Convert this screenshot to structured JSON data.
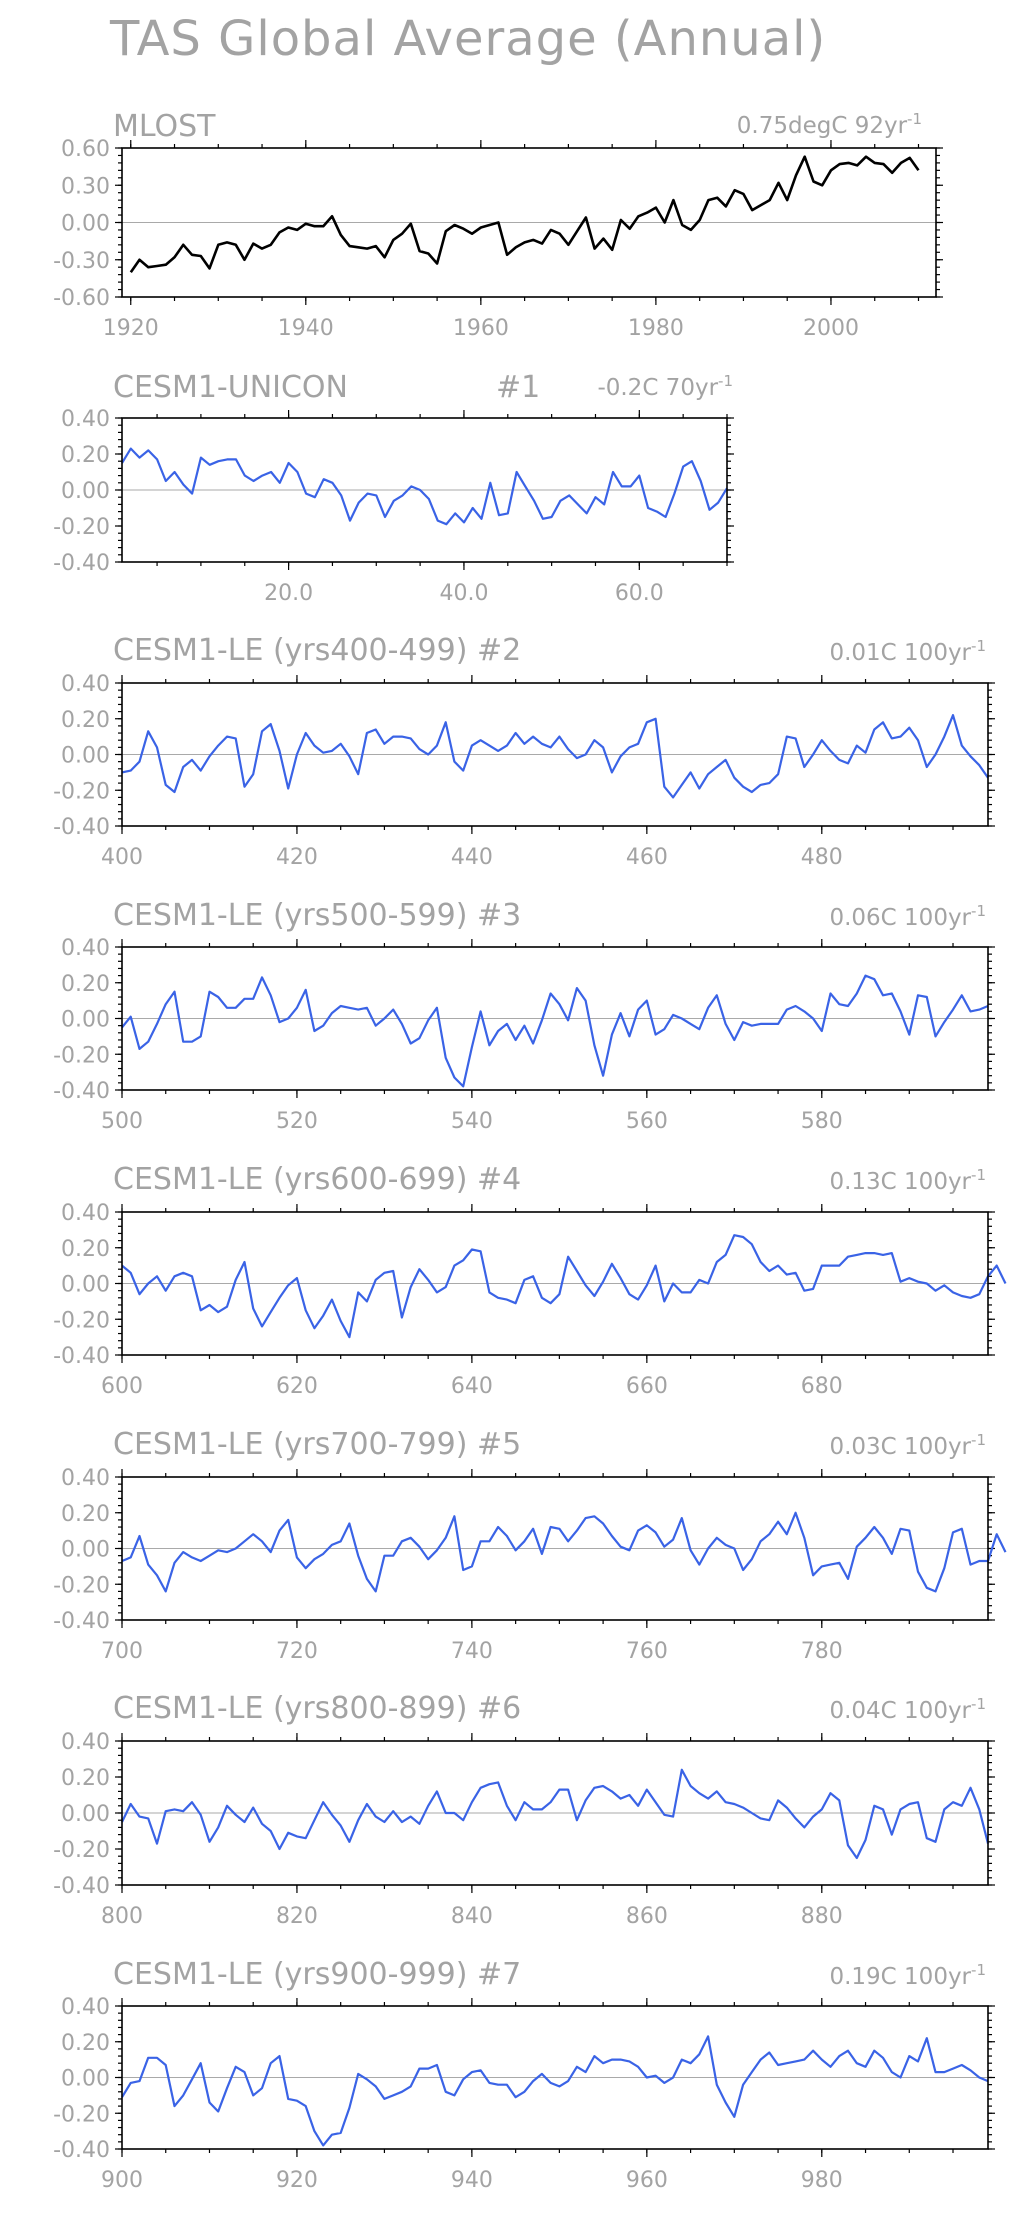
{
  "title": "TAS Global Average (Annual)",
  "colors": {
    "observed_line": "#000000",
    "model_line": "#3a63e6",
    "zero_line": "#a9a9a9",
    "text": "#a3a3a3"
  },
  "chart_data": [
    {
      "type": "line",
      "title": "MLOST",
      "trend_label": "0.75degC 92yr",
      "trend_exponent": "-1",
      "color": "#000000",
      "ylim": [
        -0.6,
        0.6
      ],
      "yticks": [
        "0.60",
        "0.30",
        "0.00",
        "-0.30",
        "-0.60"
      ],
      "xlim": [
        1919,
        2012
      ],
      "xticks": [
        "1920",
        "1940",
        "1960",
        "1980",
        "2000"
      ],
      "x_start": 1920,
      "values": [
        -0.4,
        -0.3,
        -0.36,
        -0.35,
        -0.34,
        -0.28,
        -0.18,
        -0.26,
        -0.27,
        -0.37,
        -0.18,
        -0.16,
        -0.18,
        -0.3,
        -0.17,
        -0.21,
        -0.18,
        -0.08,
        -0.04,
        -0.06,
        -0.01,
        -0.03,
        -0.03,
        0.05,
        -0.1,
        -0.19,
        -0.2,
        -0.21,
        -0.19,
        -0.28,
        -0.14,
        -0.09,
        -0.01,
        -0.23,
        -0.25,
        -0.33,
        -0.07,
        -0.02,
        -0.05,
        -0.09,
        -0.04,
        -0.02,
        0.0,
        -0.26,
        -0.2,
        -0.16,
        -0.14,
        -0.17,
        -0.06,
        -0.09,
        -0.18,
        -0.07,
        0.04,
        -0.21,
        -0.13,
        -0.22,
        0.02,
        -0.05,
        0.05,
        0.08,
        0.12,
        0.0,
        0.18,
        -0.02,
        -0.06,
        0.02,
        0.18,
        0.2,
        0.13,
        0.26,
        0.23,
        0.1,
        0.14,
        0.18,
        0.32,
        0.18,
        0.38,
        0.53,
        0.33,
        0.3,
        0.42,
        0.47,
        0.48,
        0.46,
        0.53,
        0.48,
        0.47,
        0.4,
        0.48,
        0.52,
        0.42
      ]
    },
    {
      "type": "line",
      "title": "CESM1-UNICON",
      "run_label": "#1",
      "trend_label": "-0.2C 70yr",
      "trend_exponent": "-1",
      "color": "#3a63e6",
      "ylim": [
        -0.4,
        0.4
      ],
      "yticks": [
        "0.40",
        "0.20",
        "0.00",
        "-0.20",
        "-0.40"
      ],
      "xlim": [
        1,
        70
      ],
      "xticks": [
        "20.0",
        "40.0",
        "60.0"
      ],
      "x_start": 1,
      "values": [
        0.15,
        0.23,
        0.18,
        0.22,
        0.17,
        0.05,
        0.1,
        0.03,
        -0.02,
        0.18,
        0.14,
        0.16,
        0.17,
        0.17,
        0.08,
        0.05,
        0.08,
        0.1,
        0.04,
        0.15,
        0.1,
        -0.02,
        -0.04,
        0.06,
        0.04,
        -0.03,
        -0.17,
        -0.07,
        -0.02,
        -0.03,
        -0.15,
        -0.06,
        -0.03,
        0.02,
        0.0,
        -0.05,
        -0.17,
        -0.19,
        -0.13,
        -0.18,
        -0.1,
        -0.16,
        0.04,
        -0.14,
        -0.13,
        0.1,
        0.02,
        -0.06,
        -0.16,
        -0.15,
        -0.06,
        -0.03,
        -0.08,
        -0.13,
        -0.04,
        -0.08,
        0.1,
        0.02,
        0.02,
        0.08,
        -0.1,
        -0.12,
        -0.15,
        -0.02,
        0.13,
        0.16,
        0.05,
        -0.11,
        -0.07,
        0.01
      ]
    },
    {
      "type": "line",
      "title": "CESM1-LE (yrs400-499)",
      "run_label": "#2",
      "trend_label": "0.01C 100yr",
      "trend_exponent": "-1",
      "color": "#3a63e6",
      "ylim": [
        -0.4,
        0.4
      ],
      "yticks": [
        "0.40",
        "0.20",
        "0.00",
        "-0.20",
        "-0.40"
      ],
      "xlim": [
        400,
        499
      ],
      "xticks": [
        "400",
        "420",
        "440",
        "460",
        "480"
      ],
      "x_start": 400,
      "values": [
        -0.1,
        -0.09,
        -0.04,
        0.13,
        0.04,
        -0.17,
        -0.21,
        -0.07,
        -0.03,
        -0.09,
        -0.01,
        0.05,
        0.1,
        0.09,
        -0.18,
        -0.11,
        0.13,
        0.17,
        0.02,
        -0.19,
        0.0,
        0.12,
        0.05,
        0.01,
        0.02,
        0.06,
        -0.01,
        -0.11,
        0.12,
        0.14,
        0.06,
        0.1,
        0.1,
        0.09,
        0.03,
        0.0,
        0.05,
        0.18,
        -0.04,
        -0.09,
        0.05,
        0.08,
        0.05,
        0.02,
        0.05,
        0.12,
        0.06,
        0.1,
        0.06,
        0.04,
        0.1,
        0.03,
        -0.02,
        0.0,
        0.08,
        0.04,
        -0.1,
        -0.01,
        0.04,
        0.06,
        0.18,
        0.2,
        -0.18,
        -0.24,
        -0.17,
        -0.1,
        -0.19,
        -0.11,
        -0.07,
        -0.03,
        -0.13,
        -0.18,
        -0.21,
        -0.17,
        -0.16,
        -0.11,
        0.1,
        0.09,
        -0.07,
        0.0,
        0.08,
        0.02,
        -0.03,
        -0.05,
        0.05,
        0.01,
        0.14,
        0.18,
        0.09,
        0.1,
        0.15,
        0.08,
        -0.07,
        0.0,
        0.1,
        0.22,
        0.05,
        -0.01,
        -0.06,
        -0.13
      ]
    },
    {
      "type": "line",
      "title": "CESM1-LE (yrs500-599)",
      "run_label": "#3",
      "trend_label": "0.06C 100yr",
      "trend_exponent": "-1",
      "color": "#3a63e6",
      "ylim": [
        -0.4,
        0.4
      ],
      "yticks": [
        "0.40",
        "0.20",
        "0.00",
        "-0.20",
        "-0.40"
      ],
      "xlim": [
        500,
        599
      ],
      "xticks": [
        "500",
        "520",
        "540",
        "560",
        "580"
      ],
      "x_start": 500,
      "values": [
        -0.05,
        0.01,
        -0.17,
        -0.13,
        -0.03,
        0.08,
        0.15,
        -0.13,
        -0.13,
        -0.1,
        0.15,
        0.12,
        0.06,
        0.06,
        0.11,
        0.11,
        0.23,
        0.13,
        -0.02,
        0.0,
        0.06,
        0.16,
        -0.07,
        -0.04,
        0.03,
        0.07,
        0.06,
        0.05,
        0.06,
        -0.04,
        0.0,
        0.05,
        -0.03,
        -0.14,
        -0.11,
        -0.01,
        0.06,
        -0.22,
        -0.33,
        -0.38,
        -0.16,
        0.04,
        -0.15,
        -0.07,
        -0.03,
        -0.12,
        -0.04,
        -0.14,
        -0.01,
        0.14,
        0.08,
        -0.01,
        0.17,
        0.1,
        -0.15,
        -0.32,
        -0.09,
        0.03,
        -0.1,
        0.05,
        0.1,
        -0.09,
        -0.06,
        0.02,
        0.0,
        -0.03,
        -0.06,
        0.06,
        0.13,
        -0.03,
        -0.12,
        -0.02,
        -0.04,
        -0.03,
        -0.03,
        -0.03,
        0.05,
        0.07,
        0.04,
        0.0,
        -0.07,
        0.14,
        0.08,
        0.07,
        0.14,
        0.24,
        0.22,
        0.13,
        0.14,
        0.04,
        -0.09,
        0.13,
        0.12,
        -0.1,
        -0.02,
        0.05,
        0.13,
        0.04,
        0.05,
        0.07
      ]
    },
    {
      "type": "line",
      "title": "CESM1-LE (yrs600-699)",
      "run_label": "#4",
      "trend_label": "0.13C 100yr",
      "trend_exponent": "-1",
      "color": "#3a63e6",
      "ylim": [
        -0.4,
        0.4
      ],
      "yticks": [
        "0.40",
        "0.20",
        "0.00",
        "-0.20",
        "-0.40"
      ],
      "xlim": [
        600,
        699
      ],
      "xticks": [
        "600",
        "620",
        "640",
        "660",
        "680"
      ],
      "x_start": 600,
      "values": [
        0.1,
        0.06,
        -0.06,
        0.0,
        0.04,
        -0.04,
        0.04,
        0.06,
        0.04,
        -0.15,
        -0.12,
        -0.16,
        -0.13,
        0.02,
        0.12,
        -0.14,
        -0.24,
        -0.16,
        -0.08,
        -0.01,
        0.03,
        -0.15,
        -0.25,
        -0.18,
        -0.09,
        -0.21,
        -0.3,
        -0.05,
        -0.1,
        0.02,
        0.06,
        0.07,
        -0.19,
        -0.02,
        0.08,
        0.02,
        -0.05,
        -0.02,
        0.1,
        0.13,
        0.19,
        0.18,
        -0.05,
        -0.08,
        -0.09,
        -0.11,
        0.02,
        0.04,
        -0.08,
        -0.11,
        -0.06,
        0.15,
        0.07,
        -0.01,
        -0.07,
        0.01,
        0.11,
        0.03,
        -0.06,
        -0.09,
        -0.01,
        0.1,
        -0.1,
        0.0,
        -0.05,
        -0.05,
        0.02,
        0.0,
        0.12,
        0.16,
        0.27,
        0.26,
        0.22,
        0.12,
        0.07,
        0.1,
        0.05,
        0.06,
        -0.04,
        -0.03,
        0.1,
        0.1,
        0.1,
        0.15,
        0.16,
        0.17,
        0.17,
        0.16,
        0.17,
        0.01,
        0.03,
        0.01,
        0.0,
        -0.04,
        -0.01,
        -0.05,
        -0.07,
        -0.08,
        -0.06,
        0.04,
        0.1,
        0.0
      ]
    },
    {
      "type": "line",
      "title": "CESM1-LE (yrs700-799)",
      "run_label": "#5",
      "trend_label": "0.03C 100yr",
      "trend_exponent": "-1",
      "color": "#3a63e6",
      "ylim": [
        -0.4,
        0.4
      ],
      "yticks": [
        "0.40",
        "0.20",
        "0.00",
        "-0.20",
        "-0.40"
      ],
      "xlim": [
        700,
        799
      ],
      "xticks": [
        "700",
        "720",
        "740",
        "760",
        "780"
      ],
      "x_start": 700,
      "values": [
        -0.07,
        -0.05,
        0.07,
        -0.09,
        -0.15,
        -0.24,
        -0.08,
        -0.02,
        -0.05,
        -0.07,
        -0.04,
        -0.01,
        -0.02,
        0.0,
        0.04,
        0.08,
        0.04,
        -0.02,
        0.1,
        0.16,
        -0.05,
        -0.11,
        -0.06,
        -0.03,
        0.02,
        0.04,
        0.14,
        -0.04,
        -0.17,
        -0.24,
        -0.04,
        -0.04,
        0.04,
        0.06,
        0.01,
        -0.06,
        -0.01,
        0.06,
        0.18,
        -0.12,
        -0.1,
        0.04,
        0.04,
        0.12,
        0.07,
        -0.01,
        0.04,
        0.11,
        -0.03,
        0.12,
        0.11,
        0.04,
        0.1,
        0.17,
        0.18,
        0.14,
        0.07,
        0.01,
        -0.01,
        0.1,
        0.13,
        0.09,
        0.01,
        0.05,
        0.17,
        -0.01,
        -0.09,
        0.0,
        0.06,
        0.02,
        0.0,
        -0.12,
        -0.06,
        0.04,
        0.08,
        0.15,
        0.08,
        0.2,
        0.06,
        -0.15,
        -0.1,
        -0.09,
        -0.08,
        -0.17,
        0.01,
        0.06,
        0.12,
        0.06,
        -0.03,
        0.11,
        0.1,
        -0.13,
        -0.22,
        -0.24,
        -0.11,
        0.09,
        0.11,
        -0.09,
        -0.07,
        -0.07,
        0.08,
        -0.02
      ]
    },
    {
      "type": "line",
      "title": "CESM1-LE (yrs800-899)",
      "run_label": "#6",
      "trend_label": "0.04C 100yr",
      "trend_exponent": "-1",
      "color": "#3a63e6",
      "ylim": [
        -0.4,
        0.4
      ],
      "yticks": [
        "0.40",
        "0.20",
        "0.00",
        "-0.20",
        "-0.40"
      ],
      "xlim": [
        800,
        899
      ],
      "xticks": [
        "800",
        "820",
        "840",
        "860",
        "880"
      ],
      "x_start": 800,
      "values": [
        -0.05,
        0.05,
        -0.02,
        -0.03,
        -0.17,
        0.01,
        0.02,
        0.01,
        0.06,
        -0.01,
        -0.16,
        -0.08,
        0.04,
        -0.01,
        -0.05,
        0.03,
        -0.06,
        -0.1,
        -0.2,
        -0.11,
        -0.13,
        -0.14,
        -0.04,
        0.06,
        -0.01,
        -0.07,
        -0.16,
        -0.04,
        0.05,
        -0.02,
        -0.05,
        0.01,
        -0.05,
        -0.02,
        -0.06,
        0.04,
        0.12,
        0.0,
        0.0,
        -0.04,
        0.06,
        0.14,
        0.16,
        0.17,
        0.04,
        -0.04,
        0.06,
        0.02,
        0.02,
        0.06,
        0.13,
        0.13,
        -0.04,
        0.07,
        0.14,
        0.15,
        0.12,
        0.08,
        0.1,
        0.04,
        0.13,
        0.06,
        -0.01,
        -0.02,
        0.24,
        0.15,
        0.11,
        0.08,
        0.12,
        0.06,
        0.05,
        0.03,
        0.0,
        -0.03,
        -0.04,
        0.07,
        0.03,
        -0.03,
        -0.08,
        -0.02,
        0.02,
        0.11,
        0.07,
        -0.18,
        -0.25,
        -0.15,
        0.04,
        0.02,
        -0.12,
        0.02,
        0.05,
        0.06,
        -0.14,
        -0.16,
        0.02,
        0.06,
        0.04,
        0.14,
        0.02,
        -0.17
      ]
    },
    {
      "type": "line",
      "title": "CESM1-LE (yrs900-999)",
      "run_label": "#7",
      "trend_label": "0.19C 100yr",
      "trend_exponent": "-1",
      "color": "#3a63e6",
      "ylim": [
        -0.4,
        0.4
      ],
      "yticks": [
        "0.40",
        "0.20",
        "0.00",
        "-0.20",
        "-0.40"
      ],
      "xlim": [
        900,
        999
      ],
      "xticks": [
        "900",
        "920",
        "940",
        "960",
        "980"
      ],
      "x_start": 900,
      "values": [
        -0.11,
        -0.03,
        -0.02,
        0.11,
        0.11,
        0.07,
        -0.16,
        -0.1,
        -0.01,
        0.08,
        -0.14,
        -0.19,
        -0.06,
        0.06,
        0.03,
        -0.1,
        -0.06,
        0.08,
        0.12,
        -0.12,
        -0.13,
        -0.16,
        -0.3,
        -0.38,
        -0.32,
        -0.31,
        -0.17,
        0.02,
        -0.01,
        -0.05,
        -0.12,
        -0.1,
        -0.08,
        -0.05,
        0.05,
        0.05,
        0.07,
        -0.08,
        -0.1,
        -0.01,
        0.03,
        0.04,
        -0.03,
        -0.04,
        -0.04,
        -0.11,
        -0.08,
        -0.02,
        0.02,
        -0.03,
        -0.05,
        -0.02,
        0.06,
        0.03,
        0.12,
        0.08,
        0.1,
        0.1,
        0.09,
        0.06,
        0.0,
        0.01,
        -0.03,
        0.0,
        0.1,
        0.08,
        0.13,
        0.23,
        -0.04,
        -0.14,
        -0.22,
        -0.04,
        0.03,
        0.1,
        0.14,
        0.07,
        0.08,
        0.09,
        0.1,
        0.15,
        0.1,
        0.06,
        0.12,
        0.15,
        0.08,
        0.06,
        0.15,
        0.11,
        0.03,
        0.0,
        0.12,
        0.09,
        0.22,
        0.03,
        0.03,
        0.05,
        0.07,
        0.04,
        0.0,
        -0.02
      ]
    }
  ]
}
